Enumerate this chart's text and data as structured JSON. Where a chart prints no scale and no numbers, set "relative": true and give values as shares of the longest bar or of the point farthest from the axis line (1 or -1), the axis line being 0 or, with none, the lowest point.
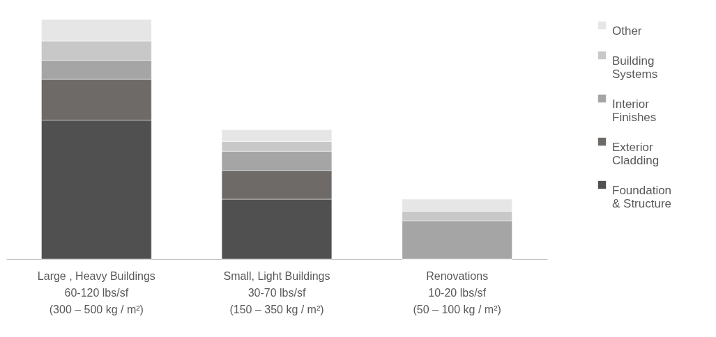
{
  "chart_data": {
    "type": "bar",
    "stacked": true,
    "relative": true,
    "legend": "right",
    "categories": [
      "Large , Heavy Buildings\n60-120 lbs/sf\n(300 – 500 kg / m²)",
      "Small, Light Buildings\n30-70 lbs/sf\n(150 – 350 kg / m²)",
      "Renovations\n10-20 lbs/sf\n(50 – 100 kg / m²)"
    ],
    "series": [
      {
        "name": "Foundation & Structure",
        "color": "#505050",
        "values": [
          0.58,
          0.25,
          0
        ]
      },
      {
        "name": "Exterior Cladding",
        "color": "#6e6a68",
        "values": [
          0.17,
          0.12,
          0
        ]
      },
      {
        "name": "Interior Finishes",
        "color": "#a5a5a5",
        "values": [
          0.08,
          0.08,
          0.16
        ]
      },
      {
        "name": "Building Systems",
        "color": "#c8c8c8",
        "values": [
          0.08,
          0.04,
          0.04
        ]
      },
      {
        "name": "Other",
        "color": "#e6e6e6",
        "values": [
          0.09,
          0.05,
          0.05
        ]
      }
    ]
  }
}
